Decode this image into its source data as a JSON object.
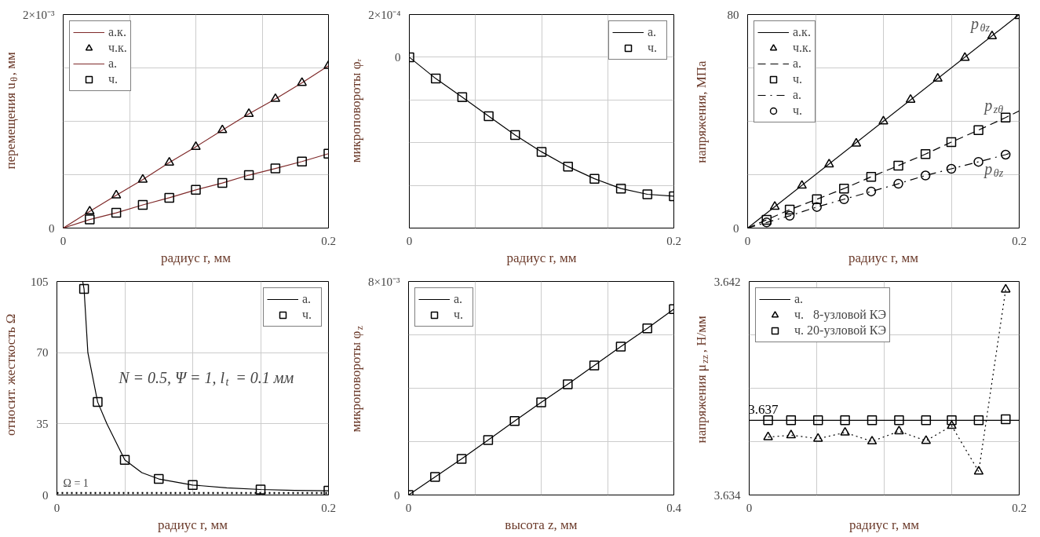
{
  "chart_data": [
    {
      "type": "line",
      "xlabel": "радиус r, мм",
      "ylabel": "перемещения u$_{θ}$, мм",
      "xlim": [
        0,
        0.2
      ],
      "ylim": [
        0,
        0.002
      ],
      "xticks": [
        0,
        {
          "value": 0.05,
          "label": null
        },
        {
          "value": 0.1,
          "label": null
        },
        {
          "value": 0.15,
          "label": null
        },
        0.2
      ],
      "yticks": [
        0,
        {
          "value": 0.0005,
          "label": null
        },
        {
          "value": 0.001,
          "label": null
        },
        {
          "value": 0.0015,
          "label": null
        },
        {
          "value": 0.002,
          "label": "2×10⁻³"
        }
      ],
      "grid": true,
      "legend": "top left",
      "series": [
        {
          "name": "а.к.",
          "type": "line",
          "color": "#7f2a2a",
          "line_style": "solid",
          "x": [
            0,
            0.02,
            0.04,
            0.06,
            0.08,
            0.1,
            0.12,
            0.14,
            0.16,
            0.18,
            0.2
          ],
          "values": [
            0,
            0.000157,
            0.000307,
            0.000454,
            0.000614,
            0.000761,
            0.000918,
            0.00107,
            0.00121,
            0.00136,
            0.00152
          ]
        },
        {
          "name": "ч.к.",
          "type": "scatter",
          "marker": "triangle",
          "color": "#000000",
          "x": [
            0.02,
            0.04,
            0.06,
            0.08,
            0.1,
            0.12,
            0.14,
            0.16,
            0.18,
            0.2
          ],
          "values": [
            0.000157,
            0.000307,
            0.000454,
            0.000614,
            0.000761,
            0.000918,
            0.00107,
            0.00121,
            0.00136,
            0.00152
          ]
        },
        {
          "name": "а.",
          "type": "line",
          "color": "#7f2a2a",
          "line_style": "solid",
          "x": [
            0,
            0.02,
            0.04,
            0.06,
            0.08,
            0.1,
            0.12,
            0.14,
            0.16,
            0.18,
            0.2
          ],
          "values": [
            0,
            8e-05,
            0.000143,
            0.000217,
            0.000284,
            0.000358,
            0.000422,
            0.000496,
            0.000558,
            0.000623,
            0.000697
          ]
        },
        {
          "name": "ч.",
          "type": "scatter",
          "marker": "square",
          "color": "#000000",
          "x": [
            0.02,
            0.04,
            0.06,
            0.08,
            0.1,
            0.12,
            0.14,
            0.16,
            0.18,
            0.2
          ],
          "values": [
            8e-05,
            0.000143,
            0.000217,
            0.000284,
            0.000358,
            0.000422,
            0.000496,
            0.000558,
            0.000623,
            0.000697
          ]
        }
      ]
    },
    {
      "type": "line",
      "xlabel": "радиус r, мм",
      "ylabel": "микроповороты φᵣ",
      "xlim": [
        0,
        0.2
      ],
      "ylim": [
        -0.0008,
        0.0002
      ],
      "xticks": [
        0,
        {
          "value": 0.05,
          "label": null
        },
        {
          "value": 0.1,
          "label": null
        },
        {
          "value": 0.15,
          "label": null
        },
        0.2
      ],
      "yticks": [
        {
          "value": -0.0008,
          "label": null
        },
        {
          "value": -0.0006,
          "label": null
        },
        {
          "value": -0.0004,
          "label": null
        },
        {
          "value": -0.0002,
          "label": null
        },
        0,
        {
          "value": 0.0002,
          "label": "2×10⁻⁴"
        }
      ],
      "grid": true,
      "legend": "top right",
      "series": [
        {
          "name": "а.",
          "type": "line",
          "color": "#000000",
          "line_style": "solid",
          "x": [
            0,
            0.02,
            0.04,
            0.06,
            0.08,
            0.1,
            0.12,
            0.14,
            0.16,
            0.18,
            0.2
          ],
          "values": [
            0,
            -0.0001,
            -0.000187,
            -0.000276,
            -0.000364,
            -0.000443,
            -0.000512,
            -0.000569,
            -0.000615,
            -0.000642,
            -0.000651
          ]
        },
        {
          "name": "ч.",
          "type": "scatter",
          "marker": "square",
          "color": "#000000",
          "x": [
            0,
            0.02,
            0.04,
            0.06,
            0.08,
            0.1,
            0.12,
            0.14,
            0.16,
            0.18,
            0.2
          ],
          "values": [
            0,
            -0.0001,
            -0.000187,
            -0.000276,
            -0.000364,
            -0.000443,
            -0.000512,
            -0.000569,
            -0.000615,
            -0.000642,
            -0.000651
          ]
        }
      ]
    },
    {
      "type": "line",
      "xlabel": "радиус r, мм",
      "ylabel": "напряжения, МПа",
      "xlim": [
        0,
        0.2
      ],
      "ylim": [
        0,
        80
      ],
      "xticks": [
        0,
        {
          "value": 0.05,
          "label": null
        },
        {
          "value": 0.1,
          "label": null
        },
        {
          "value": 0.15,
          "label": null
        },
        0.2
      ],
      "yticks": [
        0,
        {
          "value": 20,
          "label": null
        },
        {
          "value": 40,
          "label": null
        },
        {
          "value": 60,
          "label": null
        },
        80
      ],
      "grid": true,
      "legend": "top left",
      "series": [
        {
          "name": "а.к.",
          "type": "line",
          "color": "#000000",
          "line_style": "solid",
          "x": [
            0,
            0.2
          ],
          "values": [
            0,
            80
          ]
        },
        {
          "name": "ч.к.",
          "type": "scatter",
          "marker": "triangle",
          "color": "#000000",
          "x": [
            0.02,
            0.04,
            0.06,
            0.08,
            0.1,
            0.12,
            0.14,
            0.16,
            0.18,
            0.2
          ],
          "values": [
            8,
            15.9,
            23.9,
            31.7,
            40,
            48.1,
            56,
            63.8,
            71.9,
            79.5
          ]
        },
        {
          "name": "а.",
          "type": "line",
          "color": "#000000",
          "line_style": "dashed",
          "x": [
            0,
            0.014,
            0.031,
            0.051,
            0.071,
            0.091,
            0.111,
            0.131,
            0.15,
            0.17,
            0.19,
            0.2
          ],
          "values": [
            0,
            3.1,
            6.9,
            10.8,
            14.8,
            19.2,
            23.4,
            27.7,
            32.2,
            36.7,
            41.4,
            43.9
          ]
        },
        {
          "name": "ч.",
          "type": "scatter",
          "marker": "square",
          "color": "#000000",
          "x": [
            0.014,
            0.031,
            0.051,
            0.071,
            0.091,
            0.111,
            0.131,
            0.15,
            0.17,
            0.19
          ],
          "values": [
            3.1,
            6.9,
            10.8,
            14.8,
            19.2,
            23.4,
            27.7,
            32.2,
            36.7,
            41.4
          ]
        },
        {
          "name": "а.",
          "type": "line",
          "color": "#000000",
          "line_style": "dashdot",
          "x": [
            0,
            0.014,
            0.031,
            0.051,
            0.071,
            0.091,
            0.111,
            0.131,
            0.15,
            0.17,
            0.19,
            0.194
          ],
          "values": [
            0,
            2.1,
            4.6,
            7.9,
            10.8,
            13.7,
            16.6,
            19.7,
            22.2,
            24.8,
            27.5,
            28.2
          ]
        },
        {
          "name": "ч.",
          "type": "scatter",
          "marker": "circle",
          "color": "#000000",
          "x": [
            0.014,
            0.031,
            0.051,
            0.071,
            0.091,
            0.111,
            0.131,
            0.15,
            0.17,
            0.19
          ],
          "values": [
            2.1,
            4.6,
            7.9,
            10.8,
            13.7,
            16.6,
            19.7,
            22.2,
            24.8,
            27.5
          ]
        }
      ],
      "annotations": [
        {
          "text": "p$_{θz}$",
          "x": 0.18,
          "y": 71.9
        },
        {
          "text": "p$_{zθ}$",
          "x": 0.19,
          "y": 41.4
        },
        {
          "text": "p$_{θz}$",
          "x": 0.19,
          "y": 27.5
        }
      ]
    },
    {
      "type": "line",
      "xlabel": "радиус r, мм",
      "ylabel": "относит. жесткость Ω",
      "xlim": [
        0,
        0.2
      ],
      "ylim": [
        0,
        105
      ],
      "xticks": [
        0,
        {
          "value": 0.05,
          "label": null
        },
        {
          "value": 0.1,
          "label": null
        },
        {
          "value": 0.15,
          "label": null
        },
        0.2
      ],
      "yticks": [
        0,
        35,
        70,
        105
      ],
      "grid": true,
      "legend": "top right",
      "series": [
        {
          "name": "а.",
          "type": "line",
          "color": "#000000",
          "line_style": "solid",
          "x": [
            0.019,
            0.02,
            0.0228,
            0.03,
            0.0368,
            0.05,
            0.0625,
            0.075,
            0.1,
            0.125,
            0.15,
            0.175,
            0.2
          ],
          "values": [
            105,
            101.3,
            70,
            45.7,
            35,
            17.3,
            11,
            7.9,
            4.9,
            3.5,
            2.7,
            2.3,
            2.1
          ]
        },
        {
          "name": "ч.",
          "type": "scatter",
          "marker": "square",
          "color": "#000000",
          "x": [
            0.02,
            0.03,
            0.05,
            0.075,
            0.1,
            0.15,
            0.2
          ],
          "values": [
            101.3,
            45.7,
            17.3,
            7.9,
            4.9,
            2.7,
            2.1
          ]
        }
      ],
      "ref_lines": [
        {
          "axis": "y",
          "value": 1,
          "label": "Ω = 1",
          "color": "#000000",
          "line_style": "dotted"
        }
      ],
      "annotations": [
        "N = 0.5, Ψ = 1, l$_{t}$ = 0.1 мм"
      ]
    },
    {
      "type": "line",
      "xlabel": "высота z, мм",
      "ylabel": "микроповороты φ$_{z}$",
      "xlim": [
        0,
        0.4
      ],
      "ylim": [
        0,
        0.008
      ],
      "xticks": [
        0,
        {
          "value": 0.1,
          "label": null
        },
        {
          "value": 0.2,
          "label": null
        },
        {
          "value": 0.3,
          "label": null
        },
        0.4
      ],
      "yticks": [
        0,
        {
          "value": 0.002,
          "label": null
        },
        {
          "value": 0.004,
          "label": null
        },
        {
          "value": 0.006,
          "label": null
        },
        {
          "value": 0.008,
          "label": "8×10⁻³"
        }
      ],
      "grid": true,
      "legend": "top left",
      "series": [
        {
          "name": "а.",
          "type": "line",
          "color": "#000000",
          "line_style": "solid",
          "x": [
            0,
            0.04,
            0.08,
            0.12,
            0.16,
            0.2,
            0.24,
            0.28,
            0.32,
            0.36,
            0.4
          ],
          "values": [
            0,
            0.00068,
            0.00135,
            0.00206,
            0.00277,
            0.00347,
            0.00415,
            0.00485,
            0.00556,
            0.00624,
            0.00696
          ]
        },
        {
          "name": "ч.",
          "type": "scatter",
          "marker": "square",
          "color": "#000000",
          "x": [
            0,
            0.04,
            0.08,
            0.12,
            0.16,
            0.2,
            0.24,
            0.28,
            0.32,
            0.36,
            0.4
          ],
          "values": [
            0,
            0.00068,
            0.00135,
            0.00206,
            0.00277,
            0.00347,
            0.00415,
            0.00485,
            0.00556,
            0.00624,
            0.00696
          ]
        }
      ]
    },
    {
      "type": "line",
      "xlabel": "радиус r, мм",
      "ylabel": "напряжения μ$_{zz}$, Н/мм",
      "xlim": [
        0,
        0.2
      ],
      "ylim": [
        3.634,
        3.642
      ],
      "xticks": [
        0,
        {
          "value": 0.05,
          "label": null
        },
        {
          "value": 0.1,
          "label": null
        },
        {
          "value": 0.15,
          "label": null
        },
        0.2
      ],
      "yticks": [
        3.634,
        {
          "value": 3.636,
          "label": null
        },
        {
          "value": 3.638,
          "label": null
        },
        {
          "value": 3.64,
          "label": null
        },
        3.642
      ],
      "grid": true,
      "legend": "top left",
      "series": [
        {
          "name": "а.",
          "type": "line",
          "color": "#000000",
          "line_style": "solid",
          "x": [
            0,
            0.2
          ],
          "values": [
            3.6368,
            3.6368
          ]
        },
        {
          "name": "ч.   8-узловой КЭ",
          "type": "scatter",
          "marker": "triangle",
          "color": "#000000",
          "x": [
            0.014,
            0.031,
            0.051,
            0.071,
            0.091,
            0.111,
            0.131,
            0.15,
            0.17,
            0.19
          ],
          "values": [
            3.63617,
            3.63624,
            3.63611,
            3.63634,
            3.63601,
            3.63639,
            3.63603,
            3.63659,
            3.63488,
            3.6417
          ]
        },
        {
          "type": "line",
          "color": "#000000",
          "line_style": "dotted",
          "x": [
            0.014,
            0.031,
            0.051,
            0.071,
            0.091,
            0.111,
            0.131,
            0.15,
            0.17,
            0.19
          ],
          "values": [
            3.63617,
            3.63624,
            3.63611,
            3.63634,
            3.63601,
            3.63639,
            3.63603,
            3.63659,
            3.63488,
            3.6417
          ]
        },
        {
          "name": "ч. 20-узловой КЭ",
          "type": "scatter",
          "marker": "square",
          "color": "#000000",
          "x": [
            0.014,
            0.031,
            0.051,
            0.071,
            0.091,
            0.111,
            0.131,
            0.15,
            0.17,
            0.19
          ],
          "values": [
            3.6368,
            3.6368,
            3.6368,
            3.6368,
            3.6368,
            3.6368,
            3.6368,
            3.6368,
            3.6368,
            3.63684
          ]
        }
      ],
      "annotations": [
        {
          "text": "3.637",
          "x": 0,
          "y": 3.6368
        }
      ]
    }
  ]
}
